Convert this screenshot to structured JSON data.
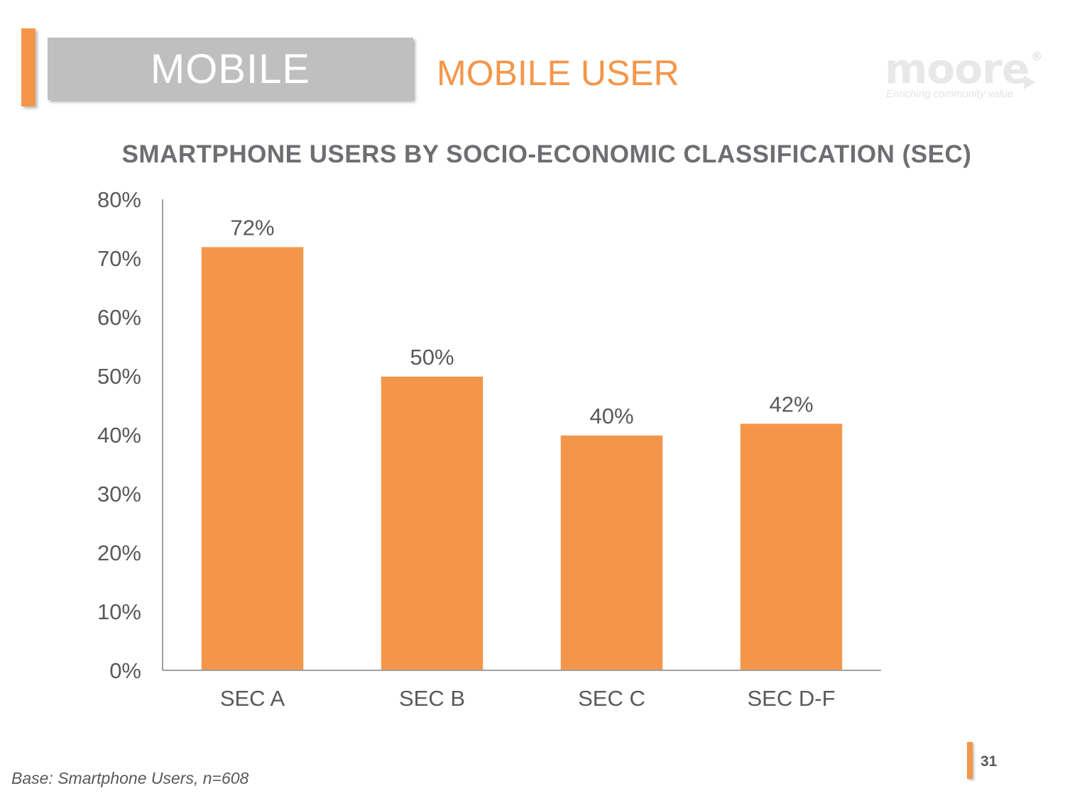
{
  "header": {
    "section_label": "MOBILE",
    "page_title": "MOBILE USER",
    "logo": {
      "wordmark": "moore",
      "registered_mark": "®",
      "tagline": "Enriching community value"
    }
  },
  "colors": {
    "accent": "#f4964a",
    "section_box": "#bfbfbf",
    "text_gray": "#58595b"
  },
  "chart_data": {
    "type": "bar",
    "title": "SMARTPHONE USERS BY SOCIO-ECONOMIC CLASSIFICATION (SEC)",
    "categories": [
      "SEC A",
      "SEC B",
      "SEC C",
      "SEC D-F"
    ],
    "values": [
      72,
      50,
      40,
      42
    ],
    "data_labels": [
      "72%",
      "50%",
      "40%",
      "42%"
    ],
    "ylim": [
      0,
      80
    ],
    "yticks": [
      "0%",
      "10%",
      "20%",
      "30%",
      "40%",
      "50%",
      "60%",
      "70%",
      "80%"
    ],
    "xlabel": "",
    "ylabel": "",
    "grid": false,
    "legend": "none",
    "bar_color": "#f4964a"
  },
  "footer": {
    "base_note": "Base: Smartphone Users, n=608",
    "page_number": "31"
  }
}
